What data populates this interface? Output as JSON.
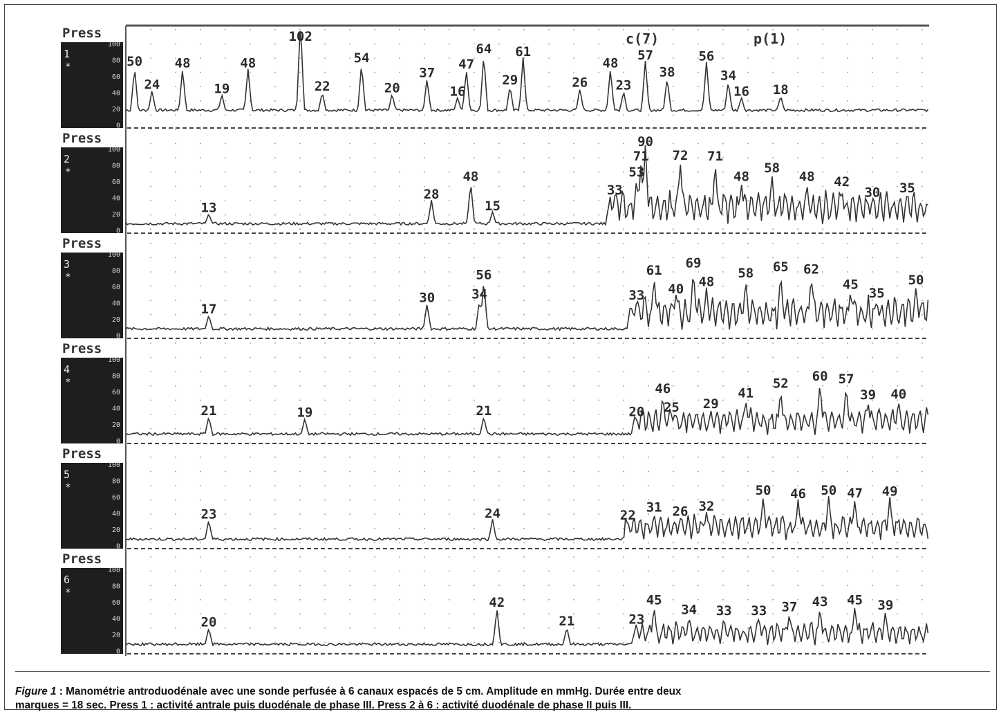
{
  "chart_data": {
    "type": "line",
    "top_markers": [
      "c(7)",
      "p(1)"
    ],
    "scale_ticks": [
      "100",
      "80",
      "60",
      "40",
      "20",
      "0"
    ],
    "channels": [
      {
        "label": "Press",
        "number": "1",
        "unit": "*",
        "peaks": [
          {
            "x": 2,
            "v": 50
          },
          {
            "x": 6,
            "v": 24
          },
          {
            "x": 13,
            "v": 48
          },
          {
            "x": 22,
            "v": 19
          },
          {
            "x": 28,
            "v": 48
          },
          {
            "x": 40,
            "v": 102
          },
          {
            "x": 45,
            "v": 22
          },
          {
            "x": 54,
            "v": 54
          },
          {
            "x": 61,
            "v": 20
          },
          {
            "x": 69,
            "v": 37
          },
          {
            "x": 76,
            "v": 16
          },
          {
            "x": 78,
            "v": 47
          },
          {
            "x": 82,
            "v": 64
          },
          {
            "x": 88,
            "v": 29
          },
          {
            "x": 91,
            "v": 61
          },
          {
            "x": 104,
            "v": 26
          },
          {
            "x": 111,
            "v": 48
          },
          {
            "x": 114,
            "v": 23
          },
          {
            "x": 119,
            "v": 57
          },
          {
            "x": 124,
            "v": 38
          },
          {
            "x": 133,
            "v": 56
          },
          {
            "x": 138,
            "v": 34
          },
          {
            "x": 141,
            "v": 16
          },
          {
            "x": 150,
            "v": 18
          }
        ],
        "burst": null
      },
      {
        "label": "Press",
        "number": "2",
        "unit": "*",
        "peaks": [
          {
            "x": 19,
            "v": 13
          },
          {
            "x": 70,
            "v": 28
          },
          {
            "x": 79,
            "v": 48
          },
          {
            "x": 84,
            "v": 15
          },
          {
            "x": 112,
            "v": 33
          },
          {
            "x": 117,
            "v": 53
          },
          {
            "x": 118,
            "v": 71
          },
          {
            "x": 119,
            "v": 90
          },
          {
            "x": 127,
            "v": 72
          },
          {
            "x": 135,
            "v": 71
          },
          {
            "x": 141,
            "v": 48
          },
          {
            "x": 148,
            "v": 58
          },
          {
            "x": 156,
            "v": 48
          },
          {
            "x": 164,
            "v": 42
          },
          {
            "x": 171,
            "v": 30
          },
          {
            "x": 179,
            "v": 35
          }
        ],
        "burst": {
          "start": 110,
          "end": 184,
          "period": 1.55,
          "amp": 38
        }
      },
      {
        "label": "Press",
        "number": "3",
        "unit": "*",
        "peaks": [
          {
            "x": 19,
            "v": 17
          },
          {
            "x": 69,
            "v": 30
          },
          {
            "x": 81,
            "v": 34
          },
          {
            "x": 82,
            "v": 56
          },
          {
            "x": 117,
            "v": 33
          },
          {
            "x": 121,
            "v": 61
          },
          {
            "x": 126,
            "v": 40
          },
          {
            "x": 130,
            "v": 69
          },
          {
            "x": 133,
            "v": 48
          },
          {
            "x": 142,
            "v": 58
          },
          {
            "x": 150,
            "v": 65
          },
          {
            "x": 157,
            "v": 62
          },
          {
            "x": 166,
            "v": 45
          },
          {
            "x": 172,
            "v": 35
          },
          {
            "x": 181,
            "v": 50
          }
        ],
        "burst": {
          "start": 115,
          "end": 184,
          "period": 1.55,
          "amp": 38
        }
      },
      {
        "label": "Press",
        "number": "4",
        "unit": "*",
        "peaks": [
          {
            "x": 19,
            "v": 21
          },
          {
            "x": 41,
            "v": 19
          },
          {
            "x": 82,
            "v": 21
          },
          {
            "x": 117,
            "v": 20
          },
          {
            "x": 123,
            "v": 46
          },
          {
            "x": 125,
            "v": 25
          },
          {
            "x": 134,
            "v": 29
          },
          {
            "x": 142,
            "v": 41
          },
          {
            "x": 150,
            "v": 52
          },
          {
            "x": 159,
            "v": 60
          },
          {
            "x": 165,
            "v": 57
          },
          {
            "x": 170,
            "v": 39
          },
          {
            "x": 177,
            "v": 40
          }
        ],
        "burst": {
          "start": 116,
          "end": 184,
          "period": 1.55,
          "amp": 30
        }
      },
      {
        "label": "Press",
        "number": "5",
        "unit": "*",
        "peaks": [
          {
            "x": 19,
            "v": 23
          },
          {
            "x": 84,
            "v": 24
          },
          {
            "x": 115,
            "v": 22
          },
          {
            "x": 121,
            "v": 31
          },
          {
            "x": 127,
            "v": 26
          },
          {
            "x": 133,
            "v": 32
          },
          {
            "x": 146,
            "v": 50
          },
          {
            "x": 154,
            "v": 46
          },
          {
            "x": 161,
            "v": 50
          },
          {
            "x": 167,
            "v": 47
          },
          {
            "x": 175,
            "v": 49
          }
        ],
        "burst": {
          "start": 114,
          "end": 184,
          "period": 1.55,
          "amp": 28
        }
      },
      {
        "label": "Press",
        "number": "6",
        "unit": "*",
        "peaks": [
          {
            "x": 19,
            "v": 20
          },
          {
            "x": 85,
            "v": 42
          },
          {
            "x": 101,
            "v": 21
          },
          {
            "x": 117,
            "v": 23
          },
          {
            "x": 121,
            "v": 45
          },
          {
            "x": 129,
            "v": 34
          },
          {
            "x": 137,
            "v": 33
          },
          {
            "x": 145,
            "v": 33
          },
          {
            "x": 152,
            "v": 37
          },
          {
            "x": 159,
            "v": 43
          },
          {
            "x": 167,
            "v": 45
          },
          {
            "x": 174,
            "v": 39
          }
        ],
        "burst": {
          "start": 116,
          "end": 184,
          "period": 1.55,
          "amp": 26
        }
      }
    ]
  },
  "caption": {
    "figure_label": "Figure 1",
    "line1": " : Manométrie antroduodénale avec une sonde perfusée à 6 canaux espacés de 5 cm. Amplitude en mmHg. Durée entre deux",
    "line2": "marques = 18 sec. Press 1 : activité antrale puis duodénale de phase III. Press 2 à 6 : activité duodénale de phase II puis III."
  }
}
